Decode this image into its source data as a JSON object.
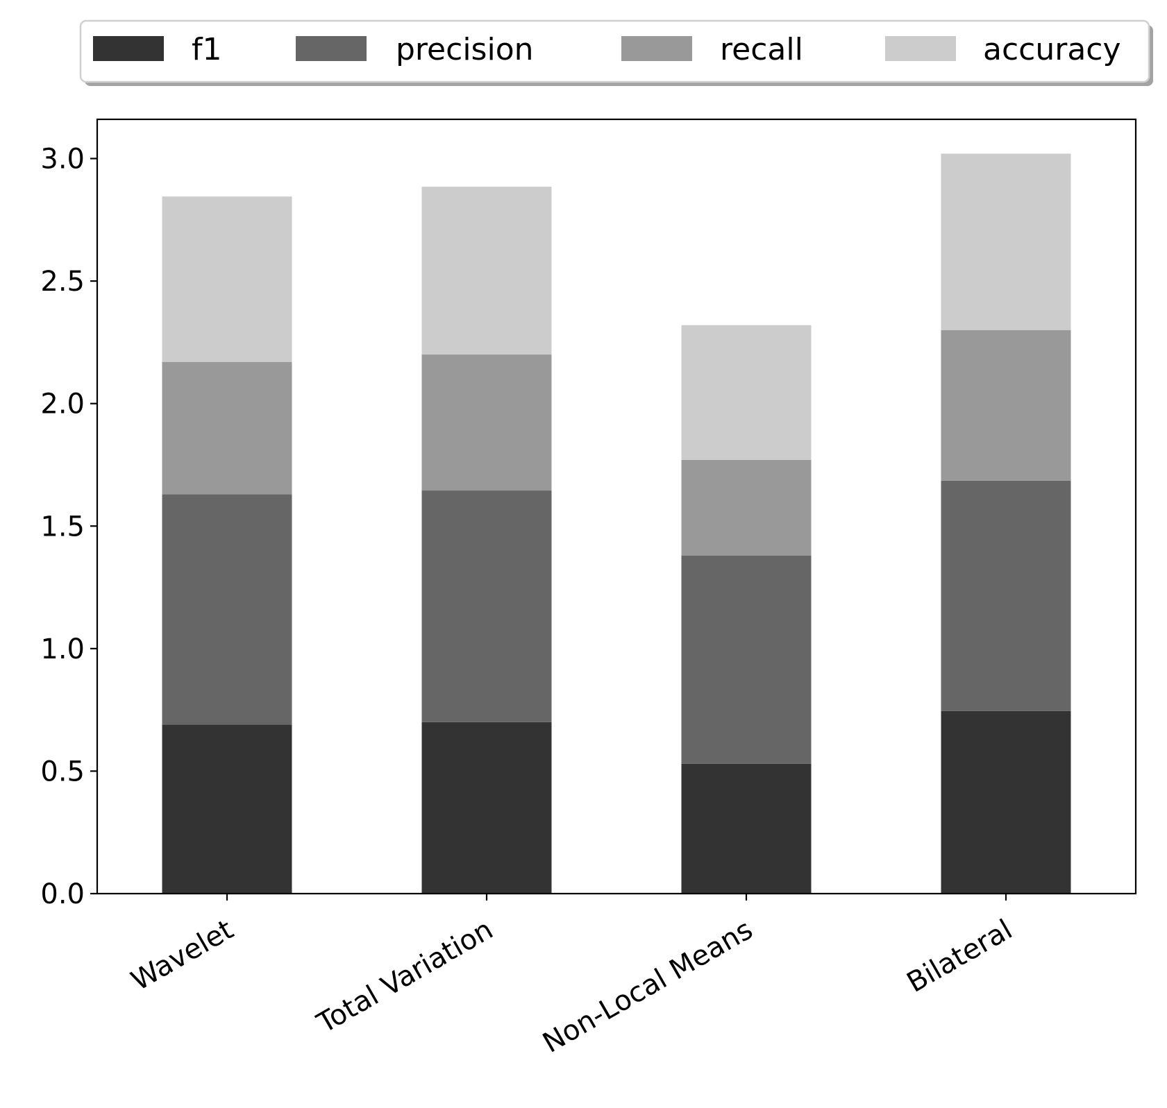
{
  "chart_data": {
    "type": "bar",
    "stacked": true,
    "title": "",
    "xlabel": "",
    "ylabel": "",
    "categories": [
      "Wavelet",
      "Total Variation",
      "Non-Local Means",
      "Bilateral"
    ],
    "series": [
      {
        "name": "f1",
        "color": "#333333",
        "values": [
          0.69,
          0.7,
          0.53,
          0.745
        ]
      },
      {
        "name": "precision",
        "color": "#666666",
        "values": [
          0.94,
          0.945,
          0.85,
          0.94
        ]
      },
      {
        "name": "recall",
        "color": "#999999",
        "values": [
          0.54,
          0.555,
          0.39,
          0.615
        ]
      },
      {
        "name": "accuracy",
        "color": "#cccccc",
        "values": [
          0.675,
          0.685,
          0.55,
          0.72
        ]
      }
    ],
    "ylim": [
      0,
      3.16
    ],
    "yticks": [
      "0.0",
      "0.5",
      "1.0",
      "1.5",
      "2.0",
      "2.5",
      "3.0"
    ],
    "grid": false,
    "legend": {
      "placement": "top",
      "columns": 4,
      "frame": true,
      "shadow": true
    }
  }
}
